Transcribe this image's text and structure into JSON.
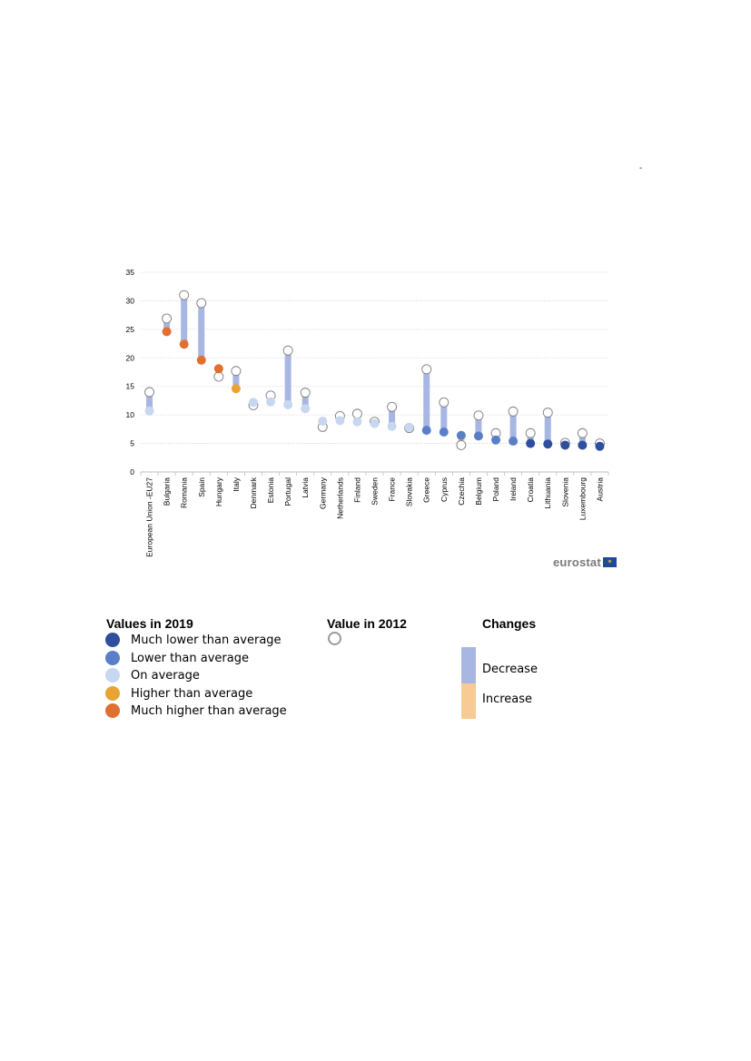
{
  "chart_data": {
    "type": "dot-range",
    "ylim": [
      0,
      35
    ],
    "yticks": [
      0,
      5,
      10,
      15,
      20,
      25,
      30,
      35
    ],
    "grid": true,
    "categories": [
      "European Union -EU27",
      "Bulgaria",
      "Romania",
      "Spain",
      "Hungary",
      "Italy",
      "Denmark",
      "Estonia",
      "Portugal",
      "Latvia",
      "Germany",
      "Netherlands",
      "Finland",
      "Sweden",
      "France",
      "Slovakia",
      "Greece",
      "Cyprus",
      "Czechia",
      "Belgium",
      "Poland",
      "Ireland",
      "Croatia",
      "Lithuania",
      "Slovenia",
      "Luxembourg",
      "Austria"
    ],
    "values_2012": [
      14.0,
      26.9,
      31.0,
      29.6,
      16.7,
      17.7,
      11.7,
      13.4,
      21.3,
      13.9,
      7.9,
      9.8,
      10.2,
      8.8,
      11.4,
      7.7,
      18.0,
      12.2,
      4.7,
      9.9,
      6.8,
      10.6,
      6.8,
      10.4,
      5.1,
      6.8,
      5.0
    ],
    "values_2019": [
      10.7,
      24.6,
      22.4,
      19.6,
      18.1,
      14.6,
      12.2,
      12.3,
      11.8,
      11.1,
      8.9,
      9.0,
      8.8,
      8.5,
      8.0,
      7.8,
      7.3,
      7.0,
      6.4,
      6.3,
      5.6,
      5.4,
      5.0,
      4.9,
      4.7,
      4.7,
      4.5
    ],
    "categories_2019": [
      "base",
      "much-higher",
      "much-higher",
      "much-higher",
      "much-higher",
      "higher",
      "average",
      "average",
      "average",
      "average",
      "average",
      "average",
      "average",
      "average",
      "average",
      "average",
      "lower",
      "lower",
      "lower",
      "lower",
      "lower",
      "lower",
      "much-lower",
      "much-lower",
      "much-lower",
      "much-lower",
      "much-lower"
    ]
  },
  "colors": {
    "much_lower": "#2d4f9e",
    "lower": "#5b7fc7",
    "average": "#c6d7ef",
    "higher": "#e8a332",
    "much_higher": "#e07030",
    "eu_point": "#c6d7ef",
    "decrease": "#a7b6e2",
    "increase": "#f7cb93",
    "ring": "#7f7f7f",
    "grid": "#d9d9d9"
  },
  "page": {
    "dash": "-"
  },
  "logo": {
    "text": "eurostat"
  },
  "legend": {
    "values_2019_title": "Values in 2019",
    "items": [
      {
        "label": "Much lower than average",
        "color": "#2d4f9e"
      },
      {
        "label": "Lower than average",
        "color": "#5b7fc7"
      },
      {
        "label": "On average",
        "color": "#c6d7ef"
      },
      {
        "label": "Higher than average",
        "color": "#e8a332"
      },
      {
        "label": "Much higher than average",
        "color": "#e07030"
      }
    ],
    "value_2012_title": "Value in 2012",
    "changes_title": "Changes",
    "decrease_label": "Decrease",
    "increase_label": "Increase"
  }
}
